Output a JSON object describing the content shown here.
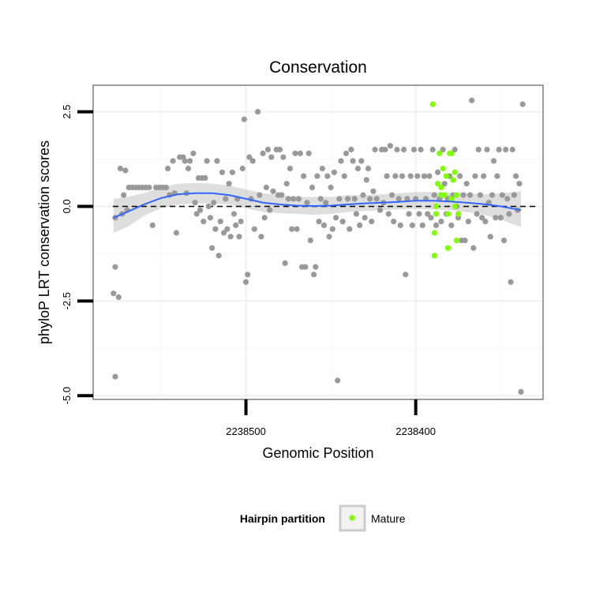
{
  "chart_data": {
    "type": "scatter",
    "title": "Conservation",
    "xlabel": "Genomic Position",
    "ylabel": "phyloP LRT conservation scores",
    "x_reversed": true,
    "xlim": [
      2238590,
      2238325
    ],
    "ylim": [
      -5.1,
      3.2
    ],
    "x_ticks": [
      2238500,
      2238400
    ],
    "x_tick_labels": [
      "2238500",
      "2238400"
    ],
    "y_ticks": [
      -5.0,
      -2.5,
      0.0,
      2.5
    ],
    "y_tick_labels": [
      "-5.0",
      "-2.5",
      "0.0",
      "2.5"
    ],
    "grid": true,
    "reference_line": {
      "y": 0,
      "style": "dashed"
    },
    "legend": {
      "title": "Hairpin partition",
      "position": "bottom",
      "entries": [
        {
          "label": "Mature",
          "color": "#7FFF00"
        }
      ]
    },
    "colors": {
      "other": "#999999",
      "mature": "#7FFF00",
      "smooth": "#3366FF",
      "ribbon": "#DDDDDD"
    },
    "series": [
      {
        "name": "",
        "color": "#999999",
        "points": [
          [
            2238577,
            -0.3
          ],
          [
            2238577,
            -1.6
          ],
          [
            2238578,
            -2.3
          ],
          [
            2238577,
            -4.5
          ],
          [
            2238575,
            -2.4
          ],
          [
            2238574,
            1.0
          ],
          [
            2238573,
            -0.2
          ],
          [
            2238572,
            0.3
          ],
          [
            2238571,
            0.95
          ],
          [
            2238570,
            -0.1
          ],
          [
            2238569,
            0.5
          ],
          [
            2238567,
            0.5
          ],
          [
            2238565,
            0.5
          ],
          [
            2238563,
            0.5
          ],
          [
            2238561,
            0.5
          ],
          [
            2238559,
            0.5
          ],
          [
            2238557,
            0.5
          ],
          [
            2238555,
            -0.5
          ],
          [
            2238553,
            0.5
          ],
          [
            2238551,
            0.5
          ],
          [
            2238549,
            0.5
          ],
          [
            2238547,
            0.5
          ],
          [
            2238546,
            1.0
          ],
          [
            2238545,
            0.3
          ],
          [
            2238543,
            1.2
          ],
          [
            2238542,
            0.35
          ],
          [
            2238541,
            -0.7
          ],
          [
            2238539,
            1.3
          ],
          [
            2238537,
            1.3
          ],
          [
            2238536,
            1.2
          ],
          [
            2238535,
            0.35
          ],
          [
            2238534,
            1.0
          ],
          [
            2238533,
            1.2
          ],
          [
            2238531,
            1.4
          ],
          [
            2238530,
            0.1
          ],
          [
            2238529,
            -0.2
          ],
          [
            2238528,
            0.75
          ],
          [
            2238527,
            -0.1
          ],
          [
            2238526,
            0.75
          ],
          [
            2238525,
            -0.4
          ],
          [
            2238524,
            0.75
          ],
          [
            2238523,
            1.2
          ],
          [
            2238522,
            0.0
          ],
          [
            2238521,
            -0.3
          ],
          [
            2238520,
            -1.1
          ],
          [
            2238519,
            0.1
          ],
          [
            2238518,
            -0.6
          ],
          [
            2238517,
            1.2
          ],
          [
            2238516,
            -1.3
          ],
          [
            2238515,
            -0.4
          ],
          [
            2238514,
            0.9
          ],
          [
            2238513,
            -0.7
          ],
          [
            2238512,
            0.2
          ],
          [
            2238511,
            -0.6
          ],
          [
            2238510,
            0.6
          ],
          [
            2238509,
            -0.8
          ],
          [
            2238508,
            0.9
          ],
          [
            2238507,
            -0.2
          ],
          [
            2238506,
            -0.5
          ],
          [
            2238505,
            0.2
          ],
          [
            2238504,
            -0.8
          ],
          [
            2238503,
            -0.4
          ],
          [
            2238502,
            1.0
          ],
          [
            2238501,
            2.3
          ],
          [
            2238500,
            -2.0
          ],
          [
            2238499,
            -1.8
          ],
          [
            2238498,
            1.3
          ],
          [
            2238497,
            0.2
          ],
          [
            2238496,
            1.2
          ],
          [
            2238495,
            -0.6
          ],
          [
            2238493,
            2.5
          ],
          [
            2238492,
            0.3
          ],
          [
            2238491,
            -0.8
          ],
          [
            2238490,
            1.4
          ],
          [
            2238489,
            -0.3
          ],
          [
            2238488,
            0.5
          ],
          [
            2238487,
            1.5
          ],
          [
            2238486,
            -0.1
          ],
          [
            2238485,
            1.3
          ],
          [
            2238484,
            0.4
          ],
          [
            2238482,
            1.5
          ],
          [
            2238481,
            0.3
          ],
          [
            2238480,
            1.5
          ],
          [
            2238479,
            0.3
          ],
          [
            2238478,
            1.3
          ],
          [
            2238477,
            -1.5
          ],
          [
            2238476,
            0.6
          ],
          [
            2238475,
            0.2
          ],
          [
            2238474,
            1.0
          ],
          [
            2238473,
            -0.6
          ],
          [
            2238472,
            0.2
          ],
          [
            2238471,
            1.4
          ],
          [
            2238470,
            -0.6
          ],
          [
            2238469,
            0.2
          ],
          [
            2238468,
            1.4
          ],
          [
            2238467,
            -1.6
          ],
          [
            2238466,
            0.8
          ],
          [
            2238465,
            -1.6
          ],
          [
            2238464,
            0.1
          ],
          [
            2238463,
            1.4
          ],
          [
            2238462,
            -0.9
          ],
          [
            2238461,
            0.5
          ],
          [
            2238460,
            -1.8
          ],
          [
            2238459,
            -1.6
          ],
          [
            2238458,
            0.8
          ],
          [
            2238457,
            -0.4
          ],
          [
            2238456,
            0.2
          ],
          [
            2238455,
            1.0
          ],
          [
            2238454,
            -0.5
          ],
          [
            2238453,
            0.1
          ],
          [
            2238452,
            0.8
          ],
          [
            2238451,
            -0.8
          ],
          [
            2238450,
            0.5
          ],
          [
            2238449,
            -0.6
          ],
          [
            2238448,
            0.9
          ],
          [
            2238447,
            -0.3
          ],
          [
            2238446,
            -4.6
          ],
          [
            2238445,
            0.2
          ],
          [
            2238444,
            1.2
          ],
          [
            2238443,
            -0.4
          ],
          [
            2238442,
            0.8
          ],
          [
            2238441,
            1.4
          ],
          [
            2238440,
            0.2
          ],
          [
            2238439,
            -0.6
          ],
          [
            2238438,
            1.5
          ],
          [
            2238437,
            1.2
          ],
          [
            2238436,
            0.2
          ],
          [
            2238435,
            -0.2
          ],
          [
            2238434,
            1.0
          ],
          [
            2238433,
            -0.5
          ],
          [
            2238432,
            1.2
          ],
          [
            2238431,
            0.3
          ],
          [
            2238430,
            -0.3
          ],
          [
            2238429,
            0.7
          ],
          [
            2238428,
            1.0
          ],
          [
            2238427,
            0.2
          ],
          [
            2238426,
            -0.4
          ],
          [
            2238425,
            0.4
          ],
          [
            2238424,
            1.5
          ],
          [
            2238423,
            0.2
          ],
          [
            2238421,
            -0.1
          ],
          [
            2238420,
            1.5
          ],
          [
            2238419,
            0.1
          ],
          [
            2238418,
            1.5
          ],
          [
            2238417,
            0.8
          ],
          [
            2238416,
            -0.2
          ],
          [
            2238415,
            1.6
          ],
          [
            2238414,
            0.3
          ],
          [
            2238413,
            -0.4
          ],
          [
            2238412,
            0.8
          ],
          [
            2238411,
            1.5
          ],
          [
            2238410,
            0.2
          ],
          [
            2238409,
            -0.5
          ],
          [
            2238408,
            0.8
          ],
          [
            2238407,
            1.5
          ],
          [
            2238406,
            -1.8
          ],
          [
            2238405,
            0.2
          ],
          [
            2238404,
            -0.2
          ],
          [
            2238403,
            0.8
          ],
          [
            2238402,
            -0.5
          ],
          [
            2238401,
            1.5
          ],
          [
            2238400,
            0.2
          ],
          [
            2238399,
            0.8
          ],
          [
            2238398,
            -0.2
          ],
          [
            2238397,
            1.5
          ],
          [
            2238396,
            -0.5
          ],
          [
            2238395,
            0.8
          ],
          [
            2238394,
            0.2
          ],
          [
            2238393,
            -0.2
          ],
          [
            2238392,
            0.8
          ],
          [
            2238391,
            -0.3
          ],
          [
            2238390,
            1.5
          ],
          [
            2238389,
            0.3
          ],
          [
            2238388,
            -0.5
          ],
          [
            2238387,
            0.9
          ],
          [
            2238386,
            0.2
          ],
          [
            2238385,
            -0.4
          ],
          [
            2238384,
            1.5
          ],
          [
            2238383,
            0.6
          ],
          [
            2238382,
            -0.2
          ],
          [
            2238381,
            0.2
          ],
          [
            2238380,
            0.8
          ],
          [
            2238379,
            -0.5
          ],
          [
            2238378,
            0.3
          ],
          [
            2238377,
            1.5
          ],
          [
            2238376,
            0.0
          ],
          [
            2238375,
            -0.3
          ],
          [
            2238374,
            0.8
          ],
          [
            2238373,
            -0.9
          ],
          [
            2238372,
            0.3
          ],
          [
            2238371,
            -0.9
          ],
          [
            2238370,
            0.6
          ],
          [
            2238369,
            -0.4
          ],
          [
            2238368,
            0.3
          ],
          [
            2238367,
            2.8
          ],
          [
            2238366,
            -1.1
          ],
          [
            2238365,
            0.8
          ],
          [
            2238364,
            -0.2
          ],
          [
            2238363,
            1.5
          ],
          [
            2238362,
            0.3
          ],
          [
            2238361,
            -0.3
          ],
          [
            2238360,
            0.8
          ],
          [
            2238359,
            -0.4
          ],
          [
            2238358,
            1.5
          ],
          [
            2238357,
            0.1
          ],
          [
            2238356,
            -0.8
          ],
          [
            2238355,
            0.3
          ],
          [
            2238354,
            1.2
          ],
          [
            2238353,
            -0.3
          ],
          [
            2238352,
            0.8
          ],
          [
            2238351,
            1.5
          ],
          [
            2238350,
            -0.3
          ],
          [
            2238349,
            0.3
          ],
          [
            2238348,
            -0.9
          ],
          [
            2238347,
            1.5
          ],
          [
            2238346,
            0.2
          ],
          [
            2238345,
            -0.2
          ],
          [
            2238344,
            -2.0
          ],
          [
            2238343,
            1.5
          ],
          [
            2238342,
            0.3
          ],
          [
            2238341,
            0.8
          ],
          [
            2238340,
            -0.1
          ],
          [
            2238339,
            0.6
          ],
          [
            2238338,
            -4.9
          ],
          [
            2238337,
            2.7
          ]
        ]
      },
      {
        "name": "Mature",
        "color": "#7FFF00",
        "points": [
          [
            2238390,
            2.7
          ],
          [
            2238389,
            -0.7
          ],
          [
            2238389,
            -1.3
          ],
          [
            2238388,
            0.0
          ],
          [
            2238388,
            -0.2
          ],
          [
            2238387,
            0.6
          ],
          [
            2238386,
            1.4
          ],
          [
            2238385,
            0.3
          ],
          [
            2238385,
            0.5
          ],
          [
            2238384,
            1.0
          ],
          [
            2238383,
            0.3
          ],
          [
            2238382,
            0.8
          ],
          [
            2238381,
            -0.2
          ],
          [
            2238381,
            -1.1
          ],
          [
            2238380,
            1.4
          ],
          [
            2238379,
            0.2
          ],
          [
            2238379,
            1.4
          ],
          [
            2238378,
            0.7
          ],
          [
            2238377,
            0.9
          ],
          [
            2238377,
            0.0
          ],
          [
            2238376,
            0.3
          ],
          [
            2238376,
            -0.9
          ],
          [
            2238375,
            -0.2
          ]
        ]
      }
    ],
    "smooth_curve": [
      [
        2238578,
        -0.3
      ],
      [
        2238570,
        -0.15
      ],
      [
        2238560,
        0.05
      ],
      [
        2238550,
        0.22
      ],
      [
        2238540,
        0.32
      ],
      [
        2238530,
        0.35
      ],
      [
        2238520,
        0.35
      ],
      [
        2238510,
        0.3
      ],
      [
        2238500,
        0.2
      ],
      [
        2238490,
        0.1
      ],
      [
        2238480,
        0.05
      ],
      [
        2238470,
        0.02
      ],
      [
        2238460,
        0.01
      ],
      [
        2238450,
        0.02
      ],
      [
        2238440,
        0.05
      ],
      [
        2238430,
        0.08
      ],
      [
        2238420,
        0.1
      ],
      [
        2238410,
        0.12
      ],
      [
        2238400,
        0.15
      ],
      [
        2238390,
        0.15
      ],
      [
        2238380,
        0.13
      ],
      [
        2238370,
        0.1
      ],
      [
        2238360,
        0.06
      ],
      [
        2238350,
        0.0
      ],
      [
        2238338,
        -0.1
      ]
    ],
    "smooth_ribbon": [
      [
        2238578,
        -0.7,
        0.2
      ],
      [
        2238570,
        -0.55,
        0.25
      ],
      [
        2238560,
        -0.25,
        0.35
      ],
      [
        2238550,
        -0.05,
        0.5
      ],
      [
        2238540,
        0.05,
        0.6
      ],
      [
        2238530,
        0.08,
        0.62
      ],
      [
        2238520,
        0.08,
        0.6
      ],
      [
        2238510,
        0.05,
        0.55
      ],
      [
        2238500,
        -0.05,
        0.45
      ],
      [
        2238490,
        -0.15,
        0.35
      ],
      [
        2238480,
        -0.18,
        0.3
      ],
      [
        2238470,
        -0.2,
        0.25
      ],
      [
        2238460,
        -0.22,
        0.25
      ],
      [
        2238450,
        -0.2,
        0.25
      ],
      [
        2238440,
        -0.15,
        0.3
      ],
      [
        2238430,
        -0.12,
        0.3
      ],
      [
        2238420,
        -0.1,
        0.32
      ],
      [
        2238410,
        -0.08,
        0.35
      ],
      [
        2238400,
        -0.07,
        0.38
      ],
      [
        2238390,
        -0.08,
        0.38
      ],
      [
        2238380,
        -0.1,
        0.36
      ],
      [
        2238370,
        -0.15,
        0.35
      ],
      [
        2238360,
        -0.22,
        0.32
      ],
      [
        2238350,
        -0.35,
        0.35
      ],
      [
        2238338,
        -0.55,
        0.4
      ]
    ]
  }
}
